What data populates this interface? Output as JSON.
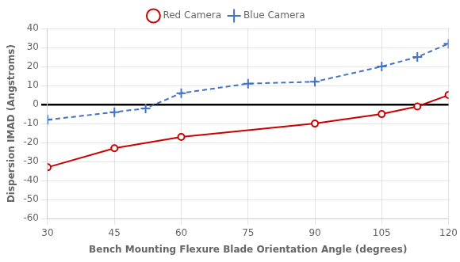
{
  "chart_data": {
    "type": "line",
    "xlabel": "Bench Mounting Flexure Blade Orientation Angle (degrees)",
    "ylabel": "Dispersion IMAD (Angstroms)",
    "series": [
      {
        "name": "Red Camera",
        "color": "#CC0000",
        "marker": "circle",
        "line_style": "solid",
        "x": [
          30,
          45,
          60,
          90,
          105,
          113,
          120
        ],
        "values": [
          -33,
          -23,
          -17,
          -10,
          -5,
          -1,
          5
        ]
      },
      {
        "name": "Blue Camera",
        "color": "#4472C4",
        "marker": "plus",
        "line_style": "dashed",
        "x": [
          30,
          45,
          52,
          60,
          75,
          90,
          105,
          113,
          120
        ],
        "values": [
          -8,
          -4,
          -2,
          6,
          11,
          12,
          20,
          25,
          32
        ]
      }
    ],
    "xlim": [
      30,
      120
    ],
    "xticks": [
      30,
      45,
      60,
      75,
      90,
      105,
      120
    ],
    "ylim": [
      -60,
      40
    ],
    "yticks": [
      -60,
      -50,
      -40,
      -30,
      -20,
      -10,
      0,
      10,
      20,
      30,
      40
    ],
    "grid": true,
    "legend": "top"
  }
}
